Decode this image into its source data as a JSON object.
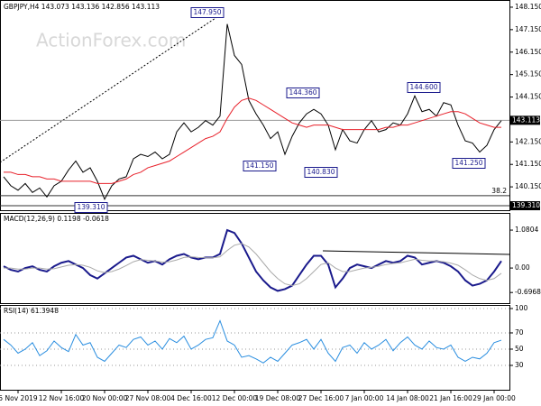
{
  "chart_data": [
    {
      "type": "line",
      "title": "GBPJPY,H4 143.073 143.136 142.856 143.113",
      "watermark": "ActionForex.com",
      "categories": [
        null,
        null,
        "5 Nov 2019",
        null,
        null,
        null,
        null,
        null,
        "12 Nov 16:00",
        null,
        null,
        null,
        null,
        null,
        "20 Nov 00:00",
        null,
        null,
        null,
        null,
        null,
        "27 Nov 08:00",
        null,
        null,
        null,
        null,
        null,
        "4 Dec 16:00",
        null,
        null,
        null,
        null,
        null,
        "12 Dec 00:00",
        null,
        null,
        null,
        null,
        null,
        "19 Dec 08:00",
        null,
        null,
        null,
        null,
        null,
        "27 Dec 16:00",
        null,
        null,
        null,
        null,
        null,
        "7 Jan 00:00",
        null,
        null,
        null,
        null,
        null,
        "14 Jan 08:00",
        null,
        null,
        null,
        null,
        null,
        "21 Jan 16:00",
        null,
        null,
        null,
        null,
        null,
        "29 Jan 00:00",
        null
      ],
      "series": [
        {
          "name": "GBPJPY",
          "color": "#000000",
          "values": [
            140.6,
            140.2,
            140.0,
            140.3,
            139.9,
            140.1,
            139.7,
            140.2,
            140.4,
            140.9,
            141.3,
            140.8,
            141.0,
            140.4,
            139.6,
            140.2,
            140.5,
            140.6,
            141.4,
            141.6,
            141.5,
            141.7,
            141.4,
            141.6,
            142.6,
            143.0,
            142.6,
            142.8,
            143.1,
            142.9,
            143.3,
            147.4,
            146.0,
            145.6,
            144.0,
            143.4,
            142.9,
            142.3,
            142.6,
            141.6,
            142.4,
            143.0,
            143.4,
            143.6,
            143.4,
            142.9,
            141.8,
            142.7,
            142.2,
            142.1,
            142.7,
            143.1,
            142.6,
            142.7,
            143.0,
            142.9,
            143.4,
            144.2,
            143.5,
            143.6,
            143.3,
            143.9,
            143.8,
            142.9,
            142.2,
            142.1,
            141.7,
            142.0,
            142.7,
            143.1
          ]
        },
        {
          "name": "MA",
          "color": "#e8202a",
          "values": [
            140.8,
            140.8,
            140.7,
            140.7,
            140.6,
            140.6,
            140.5,
            140.5,
            140.4,
            140.4,
            140.4,
            140.4,
            140.4,
            140.3,
            140.3,
            140.3,
            140.4,
            140.5,
            140.7,
            140.8,
            141.0,
            141.1,
            141.2,
            141.3,
            141.5,
            141.7,
            141.9,
            142.1,
            142.3,
            142.4,
            142.6,
            143.2,
            143.7,
            144.0,
            144.1,
            144.0,
            143.8,
            143.6,
            143.4,
            143.2,
            143.0,
            142.9,
            142.8,
            142.9,
            142.9,
            142.9,
            142.8,
            142.7,
            142.7,
            142.7,
            142.7,
            142.7,
            142.7,
            142.8,
            142.8,
            142.9,
            142.9,
            143.0,
            143.1,
            143.2,
            143.3,
            143.4,
            143.5,
            143.5,
            143.4,
            143.2,
            143.0,
            142.9,
            142.8,
            142.8
          ]
        }
      ],
      "ylim": [
        139.11,
        148.47
      ],
      "yticks": [
        {
          "value": 148.15,
          "label": "148.150"
        },
        {
          "value": 147.15,
          "label": "147.150"
        },
        {
          "value": 146.15,
          "label": "146.150"
        },
        {
          "value": 145.15,
          "label": "145.150"
        },
        {
          "value": 144.15,
          "label": "144.150"
        },
        {
          "value": 142.15,
          "label": "142.150"
        },
        {
          "value": 141.15,
          "label": "141.150"
        },
        {
          "value": 140.15,
          "label": "140.150"
        }
      ],
      "price_tags": [
        143.113,
        {
          "value": 139.31,
          "label": "139.310"
        }
      ],
      "levels": [
        {
          "value": 139.76,
          "label": "38.2"
        }
      ],
      "annotations": [
        {
          "value": 147.95,
          "label": "147.950"
        },
        {
          "value": 144.36,
          "label": "144.360"
        },
        {
          "value": 144.6,
          "label": "144.600"
        },
        {
          "value": 141.15,
          "label": "141.150"
        },
        {
          "value": 140.83,
          "label": "140.830"
        },
        {
          "value": 141.25,
          "label": "141.250"
        },
        {
          "value": 139.31,
          "label": "139.310"
        }
      ]
    },
    {
      "type": "line",
      "title": "MACD(12,26,9) 0.1198 -0.0618",
      "series": [
        {
          "name": "MACD",
          "color": "#1a1a8c",
          "values": [
            0.05,
            -0.05,
            -0.1,
            0.0,
            0.05,
            -0.05,
            -0.1,
            0.05,
            0.15,
            0.2,
            0.1,
            0.0,
            -0.2,
            -0.3,
            -0.15,
            0.0,
            0.15,
            0.3,
            0.35,
            0.25,
            0.15,
            0.2,
            0.1,
            0.25,
            0.35,
            0.4,
            0.3,
            0.25,
            0.3,
            0.3,
            0.4,
            1.08,
            1.0,
            0.7,
            0.3,
            -0.1,
            -0.35,
            -0.55,
            -0.65,
            -0.6,
            -0.5,
            -0.2,
            0.1,
            0.35,
            0.35,
            0.1,
            -0.55,
            -0.3,
            0.0,
            0.1,
            0.05,
            0.0,
            0.1,
            0.2,
            0.15,
            0.2,
            0.35,
            0.3,
            0.1,
            0.15,
            0.2,
            0.15,
            0.05,
            -0.1,
            -0.35,
            -0.5,
            -0.45,
            -0.35,
            -0.1,
            0.2
          ]
        },
        {
          "name": "Signal",
          "color": "#aaaaaa",
          "values": [
            0.0,
            0.0,
            -0.03,
            -0.03,
            0.0,
            0.0,
            -0.03,
            -0.02,
            0.03,
            0.08,
            0.1,
            0.08,
            0.02,
            -0.08,
            -0.13,
            -0.1,
            -0.03,
            0.07,
            0.18,
            0.24,
            0.22,
            0.2,
            0.17,
            0.18,
            0.23,
            0.3,
            0.32,
            0.3,
            0.29,
            0.29,
            0.32,
            0.5,
            0.65,
            0.7,
            0.6,
            0.4,
            0.15,
            -0.1,
            -0.3,
            -0.45,
            -0.5,
            -0.45,
            -0.3,
            -0.1,
            0.1,
            0.15,
            0.0,
            -0.1,
            -0.1,
            -0.05,
            0.0,
            0.02,
            0.05,
            0.1,
            0.13,
            0.15,
            0.2,
            0.25,
            0.22,
            0.2,
            0.2,
            0.18,
            0.14,
            0.08,
            -0.05,
            -0.2,
            -0.3,
            -0.35,
            -0.3,
            -0.15
          ]
        }
      ],
      "ylim": [
        -1.0,
        1.57
      ],
      "yticks": [
        1.0804,
        {
          "value": 0,
          "label": "0.00"
        },
        -0.6968
      ]
    },
    {
      "type": "line",
      "title": "RSI(14) 61.3948",
      "series": [
        {
          "name": "RSI",
          "color": "#2a8ee0",
          "values": [
            62,
            55,
            45,
            50,
            58,
            42,
            48,
            60,
            52,
            47,
            68,
            55,
            58,
            40,
            35,
            45,
            55,
            52,
            62,
            65,
            55,
            60,
            50,
            63,
            58,
            66,
            50,
            55,
            62,
            64,
            85,
            60,
            55,
            40,
            42,
            38,
            33,
            40,
            35,
            45,
            55,
            58,
            62,
            50,
            62,
            45,
            35,
            52,
            55,
            45,
            58,
            50,
            55,
            62,
            48,
            58,
            65,
            55,
            50,
            60,
            52,
            50,
            55,
            40,
            35,
            40,
            38,
            45,
            58,
            61
          ]
        }
      ],
      "ylim": [
        0,
        104.4
      ],
      "yticks": [
        100,
        70,
        50,
        30
      ]
    }
  ]
}
